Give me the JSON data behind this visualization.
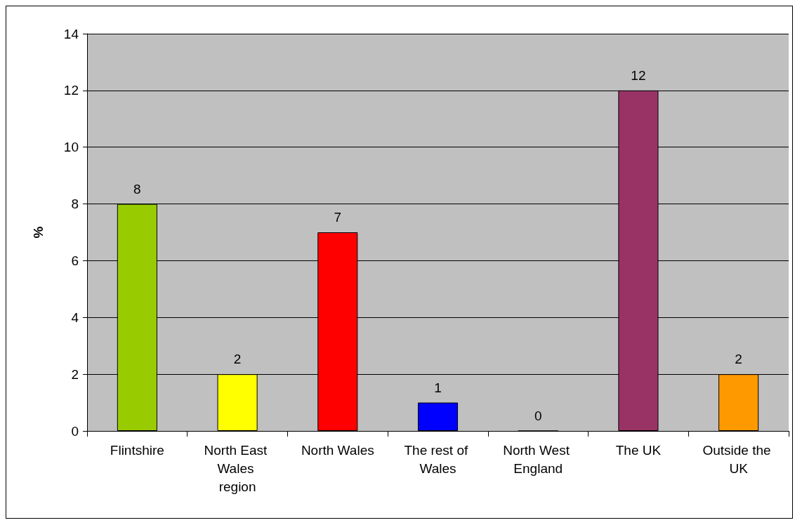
{
  "chart_data": {
    "type": "bar",
    "ylabel": "%",
    "categories": [
      "Flintshire",
      "North East Wales region",
      "North Wales",
      "The rest of Wales",
      "North West England",
      "The UK",
      "Outside the UK"
    ],
    "values": [
      8,
      2,
      7,
      1,
      0,
      12,
      2
    ],
    "colors": [
      "#99cc00",
      "#ffff00",
      "#ff0000",
      "#0000ff",
      "#000000",
      "#993366",
      "#ff9900"
    ],
    "ylim": [
      0,
      14
    ],
    "yticks": [
      0,
      2,
      4,
      6,
      8,
      10,
      12,
      14
    ],
    "grid": "y",
    "data_labels": true
  }
}
